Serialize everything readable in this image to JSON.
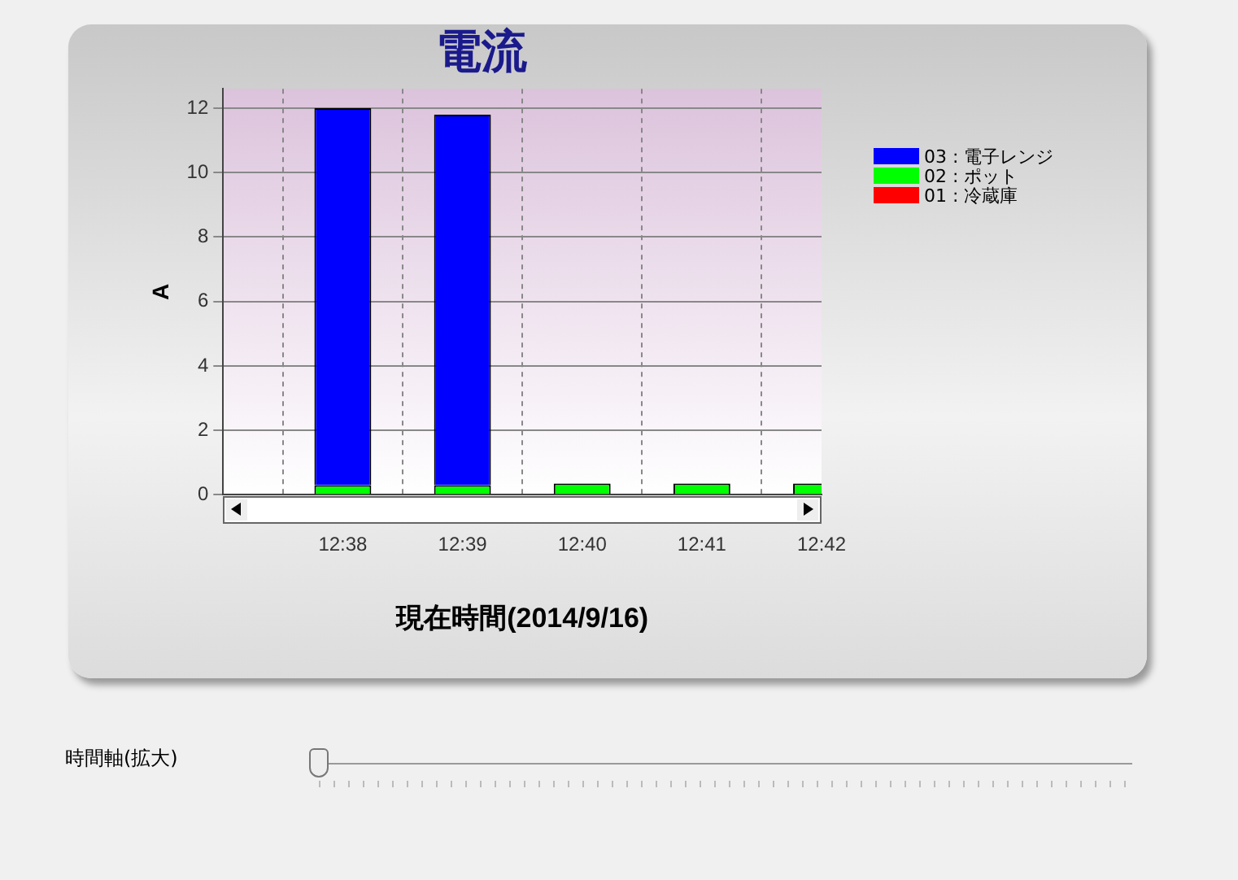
{
  "chart_data": {
    "type": "bar",
    "title": "電流",
    "xlabel": "現在時間(2014/9/16)",
    "ylabel": "A",
    "categories": [
      "12:38",
      "12:39",
      "12:40",
      "12:41",
      "12:42"
    ],
    "series": [
      {
        "name": "01 : 冷蔵庫",
        "color": "#ff0000",
        "values": [
          0,
          0,
          0,
          0,
          0
        ]
      },
      {
        "name": "02 : ポット",
        "color": "#00ff00",
        "values": [
          0.3,
          0.3,
          0.35,
          0.35,
          0.35
        ]
      },
      {
        "name": "03 : 電子レンジ",
        "color": "#0000ff",
        "values": [
          11.7,
          11.5,
          0,
          0,
          0
        ]
      }
    ],
    "stacked": true,
    "ylim": [
      0,
      12.6
    ],
    "yticks": [
      0,
      2,
      4,
      6,
      8,
      10,
      12
    ],
    "grid": true,
    "legend": "right",
    "annotations": [
      "時間軸(拡大)"
    ]
  }
}
